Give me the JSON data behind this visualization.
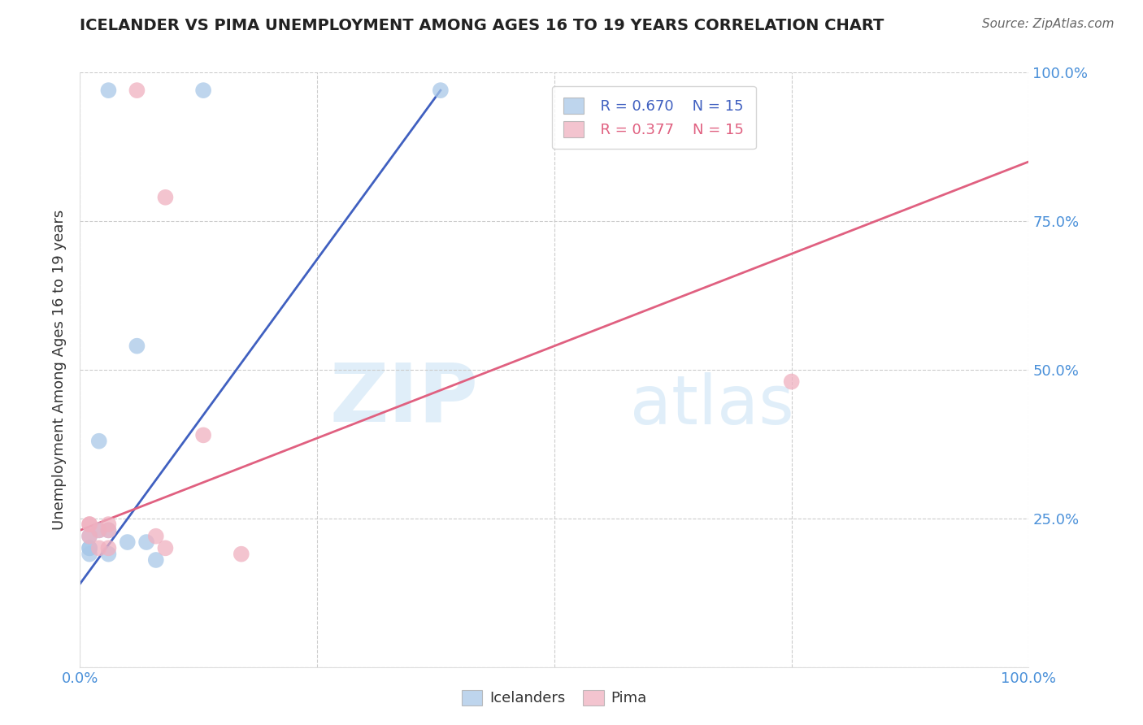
{
  "title": "ICELANDER VS PIMA UNEMPLOYMENT AMONG AGES 16 TO 19 YEARS CORRELATION CHART",
  "source": "Source: ZipAtlas.com",
  "ylabel": "Unemployment Among Ages 16 to 19 years",
  "xlim": [
    0.0,
    100.0
  ],
  "ylim": [
    0.0,
    100.0
  ],
  "xtick_positions": [
    0,
    25,
    50,
    75,
    100
  ],
  "xtick_labels": [
    "0.0%",
    "",
    "",
    "",
    "100.0%"
  ],
  "ytick_positions": [
    0,
    25,
    50,
    75,
    100
  ],
  "ytick_labels_right": [
    "",
    "25.0%",
    "50.0%",
    "75.0%",
    "100.0%"
  ],
  "legend_r_blue": "R = 0.670",
  "legend_r_pink": "R = 0.377",
  "legend_n_blue": "N = 15",
  "legend_n_pink": "N = 15",
  "legend_label_blue": "Icelanders",
  "legend_label_pink": "Pima",
  "blue_color": "#a8c8e8",
  "pink_color": "#f0b0c0",
  "blue_line_color": "#4060c0",
  "pink_line_color": "#e06080",
  "watermark_zip": "ZIP",
  "watermark_atlas": "atlas",
  "icelander_x": [
    3,
    6,
    13,
    2,
    1,
    1,
    2,
    1,
    1,
    5,
    7,
    3,
    8,
    3,
    38
  ],
  "icelander_y": [
    97,
    54,
    97,
    38,
    20,
    22,
    23,
    20,
    19,
    21,
    21,
    23,
    18,
    19,
    97
  ],
  "pima_x": [
    6,
    9,
    13,
    17,
    1,
    2,
    2,
    3,
    3,
    3,
    8,
    9,
    75,
    1,
    1
  ],
  "pima_y": [
    97,
    79,
    39,
    19,
    24,
    23,
    20,
    20,
    24,
    23,
    22,
    20,
    48,
    24,
    22
  ],
  "blue_trend_x": [
    0,
    38
  ],
  "blue_trend_y": [
    14,
    97
  ],
  "pink_trend_x": [
    0,
    100
  ],
  "pink_trend_y": [
    23,
    85
  ],
  "background_color": "#ffffff",
  "grid_color": "#cccccc",
  "tick_color": "#4a90d9",
  "title_fontsize": 14,
  "source_fontsize": 11,
  "label_fontsize": 13,
  "tick_fontsize": 13
}
